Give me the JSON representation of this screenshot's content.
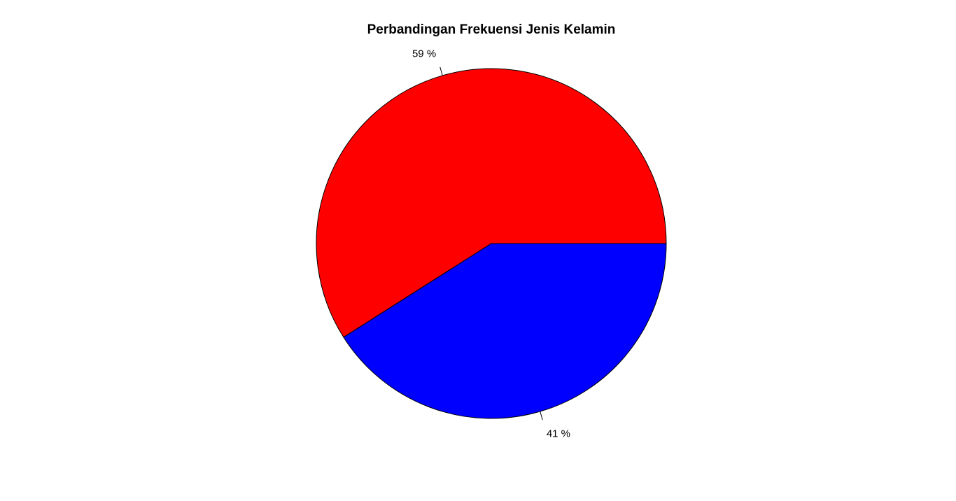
{
  "chart_data": {
    "type": "pie",
    "title": "Perbandingan Frekuensi Jenis Kelamin",
    "start_angle_deg": 0,
    "direction": "counterclockwise",
    "slices": [
      {
        "label": "59 %",
        "value": 59,
        "color": "#FF0000"
      },
      {
        "label": "41 %",
        "value": 41,
        "color": "#0000FF"
      }
    ],
    "border_color": "#000000",
    "legend": "none"
  }
}
